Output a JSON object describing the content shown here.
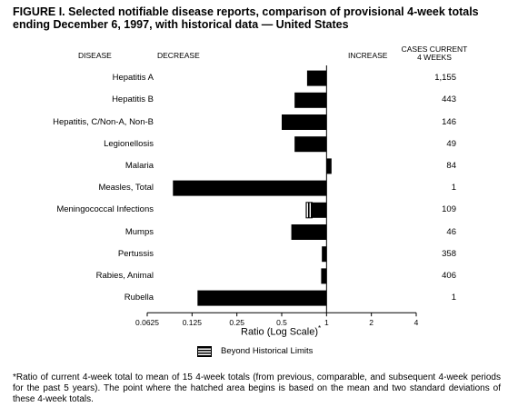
{
  "title": "FIGURE I. Selected notifiable disease reports, comparison of provisional 4-week totals ending December 6, 1997, with historical data — United States",
  "headers": {
    "disease": "DISEASE",
    "decrease": "DECREASE",
    "increase": "INCREASE",
    "cases_line1": "CASES CURRENT",
    "cases_line2": "4 WEEKS"
  },
  "legend": {
    "label": "Beyond Historical Limits"
  },
  "footnote": "*Ratio of current 4-week total to mean of 15 4-week totals (from previous, comparable, and subsequent 4-week periods for the past 5 years). The point where the hatched area begins is based on the mean and two standard deviations of these 4-week totals.",
  "chart_data": {
    "type": "bar",
    "orientation": "horizontal",
    "xscale": "log2",
    "xlabel": "Ratio (Log Scale)",
    "xlabel_sup": "*",
    "xlim": [
      0.0625,
      4
    ],
    "xticks": [
      {
        "value": 0.0625,
        "label": "0.0625"
      },
      {
        "value": 0.125,
        "label": "0.125"
      },
      {
        "value": 0.25,
        "label": "0.25"
      },
      {
        "value": 0.5,
        "label": "0.5"
      },
      {
        "value": 1,
        "label": "1"
      },
      {
        "value": 2,
        "label": "2"
      },
      {
        "value": 4,
        "label": "4"
      }
    ],
    "categories": [
      "Hepatitis A",
      "Hepatitis B",
      "Hepatitis, C/Non-A, Non-B",
      "Legionellosis",
      "Malaria",
      "Measles, Total",
      "Meningococcal Infections",
      "Mumps",
      "Pertussis",
      "Rabies, Animal",
      "Rubella"
    ],
    "values": [
      0.74,
      0.61,
      0.5,
      0.61,
      1.08,
      0.093,
      0.73,
      0.58,
      0.93,
      0.92,
      0.136
    ],
    "beyond_limits_from": [
      null,
      null,
      null,
      null,
      null,
      null,
      0.8,
      null,
      null,
      null,
      null
    ],
    "cases": [
      "1,155",
      "443",
      "146",
      "49",
      "84",
      "1",
      "109",
      "46",
      "358",
      "406",
      "1"
    ]
  }
}
